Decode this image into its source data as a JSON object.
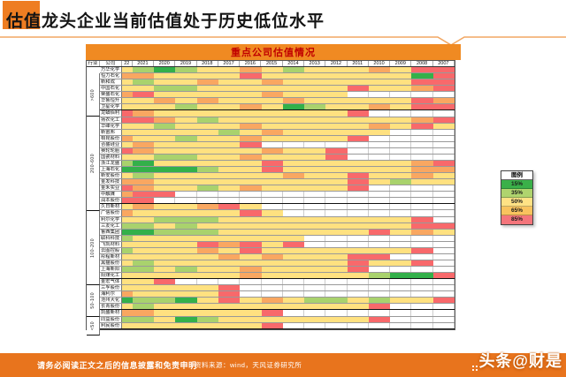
{
  "slide": {
    "title": "估值龙头企业当前估值处于历史低位水平",
    "accent_color": "#EE7D22"
  },
  "panel": {
    "title": "重点公司估值情况",
    "bar_color": "#F08A22",
    "title_color": "#C00000"
  },
  "legend": {
    "title": "图例",
    "entries": [
      {
        "label": "15%",
        "color": "#3AB049"
      },
      {
        "label": "35%",
        "color": "#AFD46E"
      },
      {
        "label": "50%",
        "color": "#FFE285"
      },
      {
        "label": "65%",
        "color": "#F9C35E"
      },
      {
        "label": "85%",
        "color": "#F4757B"
      }
    ]
  },
  "footer": {
    "disclaimer": "请务必阅读正文之后的信息披露和免责申明",
    "source": "资料来源：wind，天风证券研究所",
    "watermark": "头条@财是",
    "bar_color": "#E8741D"
  },
  "chart_data": {
    "type": "heatmap",
    "title": "重点公司估值情况",
    "meta_headers": [
      "行业",
      "公司"
    ],
    "years": [
      "22",
      "2021",
      "2020",
      "2019",
      "2018",
      "2017",
      "2016",
      "2015",
      "2014",
      "2013",
      "2012",
      "2011",
      "2010",
      "2009",
      "2008",
      "2007"
    ],
    "palette": {
      "G": "#33B04A",
      "g": "#A9D26D",
      "Y": "#FFE180",
      "O": "#F9A761",
      "R": "#F8696B",
      "W": "#FFFFFF"
    },
    "palette_meaning": {
      "G": "15%",
      "g": "35%",
      "Y": "50%",
      "O": "65%",
      "R": "85%",
      "W": ""
    },
    "groups": [
      {
        "label": ">600",
        "rows": [
          {
            "name": "万华化学",
            "cells": "YgGgYYOYgYYYOYRR"
          },
          {
            "name": "恒力石化",
            "cells": "OOYYYYRYYYYYYYGR"
          },
          {
            "name": "新和成",
            "cells": "YgYYOYYOYYYYYYRR"
          },
          {
            "name": "中国石化",
            "cells": "YYggYYYYYYYRYYOR"
          },
          {
            "name": "荣盛石化",
            "cells": "ORYYYYYOYYYWWWWW"
          },
          {
            "name": "华鲁恒升",
            "cells": "YYOYOYYYOYYYYYRO"
          },
          {
            "name": "卫星化学",
            "cells": "YYYgYYOYGgYYOYRR"
          }
        ]
      },
      {
        "label": "200-600",
        "rows": [
          {
            "name": "龙蟒佰利",
            "cells": "ROYYYYYYYYYRWWWW"
          },
          {
            "name": "扬农化工",
            "cells": "RROYgYYYYYYYYYOR"
          },
          {
            "name": "华峰化学",
            "cells": "YYgYYYOYYYYYOYRY"
          },
          {
            "name": "新宙邦",
            "cells": "YYYYYgYOYYYYYWWW"
          },
          {
            "name": "桐昆股份",
            "cells": "OYYgYYOYYYYRWWWW"
          },
          {
            "name": "合盛硅业",
            "cells": "YOYYYYRWWWWWWWWW"
          },
          {
            "name": "赛轮轮胎",
            "cells": "ROYYYYYOYYRWWWWW"
          },
          {
            "name": "国瓷材料",
            "cells": "YYggYYOYYYRWWWWW"
          },
          {
            "name": "浙江龙盛",
            "cells": "gGYYYYYRYYYYYYOR"
          },
          {
            "name": "上海石化",
            "cells": "GGGGgYYRYYYYYYOO"
          },
          {
            "name": "新安股份",
            "cells": "YgYYYYYYOYYRYYOY"
          },
          {
            "name": "金发科技",
            "cells": "OOYYYYYYYYYRYgYY"
          },
          {
            "name": "金禾实业",
            "cells": "ROYYgYOYYYYRWWWW"
          },
          {
            "name": "中触媒",
            "cells": "ORRWWWWWWWWWWWWW"
          },
          {
            "name": "润本股份",
            "cells": "RRWWWWWWWWWWWWWW"
          }
        ]
      },
      {
        "label": "100-200",
        "rows": [
          {
            "name": "久日新材",
            "cells": "YOYYORYWWWWWWWWW"
          },
          {
            "name": "广信股份",
            "cells": "OYYYYYRYWWWWWWWW"
          },
          {
            "name": "利尔化学",
            "cells": "YYgggYYYYYYYYYRW"
          },
          {
            "name": "三友化工",
            "cells": "ggYgYYYYYYYYYYRR"
          },
          {
            "name": "鲁西集团",
            "cells": "GGgggYYYYYYYRYOY"
          },
          {
            "name": "联科科技",
            "cells": "gYYYYYYYYWWWWWWW"
          },
          {
            "name": "飞凯材料",
            "cells": "YYYYRORYRWWWWWWW"
          },
          {
            "name": "云图控股",
            "cells": "gYYYOYRYYYYYYYRW"
          },
          {
            "name": "彤程新材",
            "cells": "YYYYYOYOYYYRRWWW"
          },
          {
            "name": "黑猫股份",
            "cells": "YgYYYYYYYYYRYYRW"
          },
          {
            "name": "上海新阳",
            "cells": "ggYgYYOYYYYRWWWW"
          },
          {
            "name": "阳煤化工",
            "cells": "YYYYYYOYYYYYgGGR"
          }
        ]
      },
      {
        "label": "50-100",
        "rows": [
          {
            "name": "金宏气体",
            "cells": "YYRWWWWWWWWWWWWW"
          },
          {
            "name": "三孚股份",
            "cells": "YYYYYRWWWWWWWWWW"
          },
          {
            "name": "海利尔",
            "cells": "OYYYYRWWWWWWWWWW"
          },
          {
            "name": "沧州大化",
            "cells": "GggGYRYOYggYgYYR"
          },
          {
            "name": "长青股份",
            "cells": "YgYYYYYYYYYYRWWW"
          }
        ]
      },
      {
        "label": "<50",
        "rows": [
          {
            "name": "凯盛新材",
            "cells": "OOYYYYYRWWWWWWWW"
          },
          {
            "name": "同益股份",
            "cells": "ggYGgYYYYYYYRWWW"
          },
          {
            "name": "利民股份",
            "cells": "YYYYYYYRWWWWWWWW"
          }
        ]
      }
    ]
  }
}
